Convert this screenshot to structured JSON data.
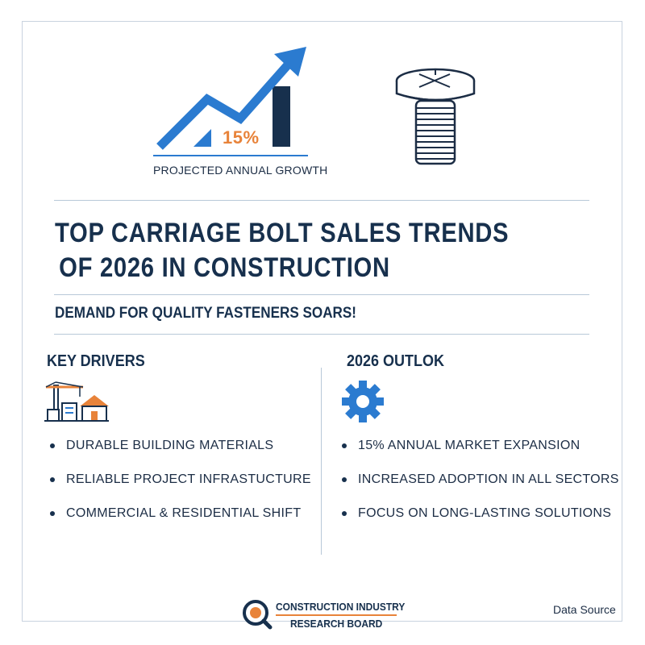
{
  "hero": {
    "growth_value": "15%",
    "growth_caption": "PROJECTED ANNUAL GROWTH"
  },
  "title": {
    "line1": "TOP CARRIAGE BOLT SALES TRENDS",
    "line2": "OF 2026 IN CONSTRUCTION"
  },
  "subtitle": "DEMAND FOR QUALITY FASTENERS SOARS!",
  "key_drivers": {
    "heading": "KEY DRIVERS",
    "items": [
      "DURABLE BUILDING MATERIALS",
      "RELIABLE PROJECT INFRASTUCTURE",
      "COMMERCIAL & RESIDENTIAL SHIFT"
    ]
  },
  "outlook": {
    "heading": "2026 OUTLOK",
    "items": [
      "15% ANNUAL MARKET EXPANSION",
      "INCREASED ADOPTION IN ALL SECTORS",
      "FOCUS ON LONG-LASTING SOLUTIONS"
    ]
  },
  "footer": {
    "org_line1": "CONSTRUCTION INDUSTRY",
    "org_line2": "RESEARCH BOARD",
    "data_source": "Data Source"
  },
  "colors": {
    "navy": "#17304d",
    "blue": "#2b7bd0",
    "orange": "#e8833a",
    "rule": "#b8c8d8"
  },
  "icons": [
    "growth-chart-icon",
    "bolt-icon",
    "construction-crane-icon",
    "gear-icon",
    "magnifier-logo-icon"
  ]
}
